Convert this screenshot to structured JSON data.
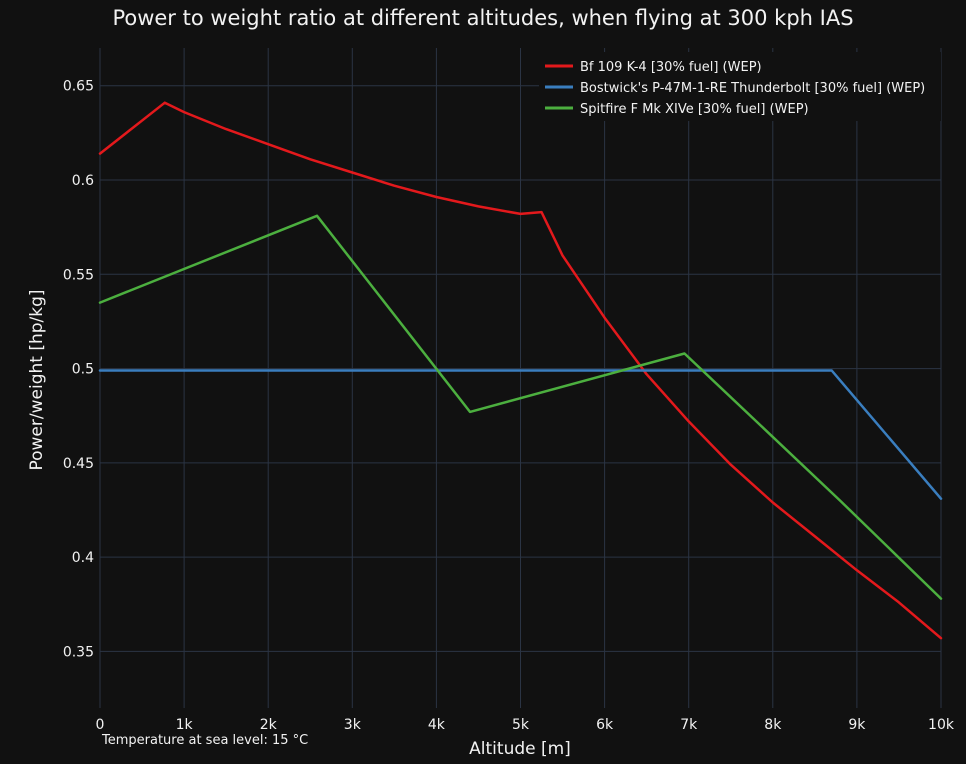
{
  "chart_data": {
    "type": "line",
    "title": "Power to weight ratio at different altitudes, when flying at 300 kph IAS",
    "xlabel": "Altitude [m]",
    "ylabel": "Power/weight [hp/kg]",
    "xlim": [
      0,
      10000
    ],
    "ylim": [
      0.32,
      0.67
    ],
    "x_ticks": [
      0,
      1000,
      2000,
      3000,
      4000,
      5000,
      6000,
      7000,
      8000,
      9000,
      10000
    ],
    "x_tick_labels": [
      "0",
      "1k",
      "2k",
      "3k",
      "4k",
      "5k",
      "6k",
      "7k",
      "8k",
      "9k",
      "10k"
    ],
    "y_ticks": [
      0.35,
      0.4,
      0.45,
      0.5,
      0.55,
      0.6,
      0.65
    ],
    "y_tick_labels": [
      "0.35",
      "0.4",
      "0.45",
      "0.5",
      "0.55",
      "0.6",
      "0.65"
    ],
    "grid": true,
    "legend_position": "top-right",
    "background": "#111111",
    "annotation": "Temperature at sea level: 15 °C",
    "series": [
      {
        "name": "Bf 109 K-4 [30% fuel] (WEP)",
        "color": "#e3191c",
        "x": [
          0,
          770,
          1000,
          1500,
          2000,
          2500,
          3000,
          3500,
          4000,
          4500,
          5000,
          5250,
          5500,
          6000,
          6500,
          7000,
          7500,
          8000,
          8500,
          9000,
          9500,
          10000
        ],
        "y": [
          0.614,
          0.641,
          0.636,
          0.627,
          0.619,
          0.611,
          0.604,
          0.597,
          0.591,
          0.586,
          0.582,
          0.583,
          0.56,
          0.527,
          0.497,
          0.472,
          0.449,
          0.429,
          0.411,
          0.393,
          0.376,
          0.357
        ]
      },
      {
        "name": "Bostwick's P-47M-1-RE Thunderbolt [30% fuel] (WEP)",
        "color": "#3a7ebf",
        "x": [
          0,
          8700,
          10000
        ],
        "y": [
          0.499,
          0.499,
          0.431
        ]
      },
      {
        "name": "Spitfire F Mk XIVe [30% fuel] (WEP)",
        "color": "#4caf3f",
        "x": [
          0,
          2580,
          4400,
          6950,
          8800,
          10000
        ],
        "y": [
          0.535,
          0.581,
          0.477,
          0.508,
          0.43,
          0.378
        ]
      }
    ]
  }
}
